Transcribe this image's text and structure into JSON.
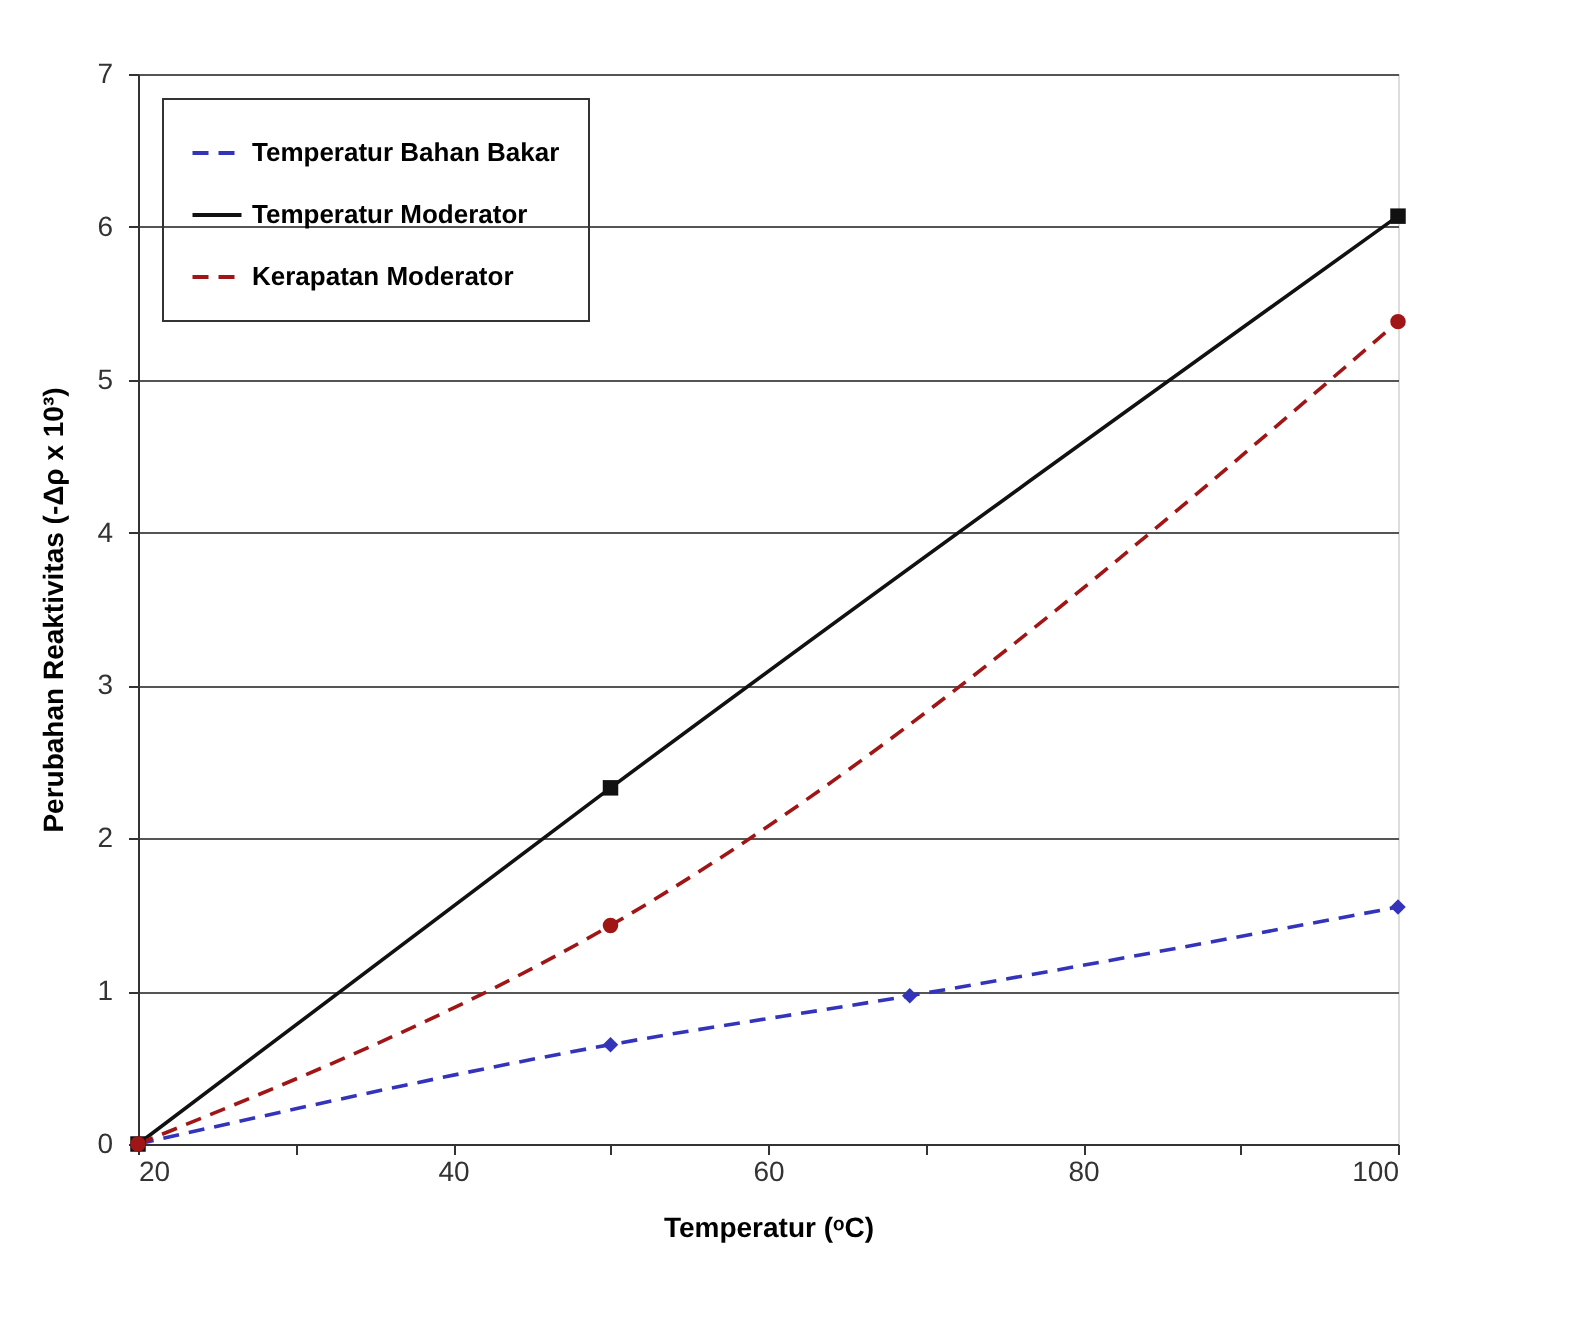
{
  "chart_data": {
    "type": "line",
    "xlabel": "Temperatur (ᵒC)",
    "ylabel": "Perubahan Reaktivitas (-Δρ x 10³)",
    "xlim": [
      20,
      100
    ],
    "xticks": [
      20,
      {
        "value": 30,
        "label": null
      },
      40,
      {
        "value": 50,
        "label": null
      },
      60,
      {
        "value": 70,
        "label": null
      },
      80,
      {
        "value": 90,
        "label": null
      },
      100
    ],
    "ylim": [
      0,
      7
    ],
    "yticks": [
      0,
      1,
      2,
      3,
      4,
      5,
      6,
      7
    ],
    "grid": "y",
    "legend": "top left",
    "series": [
      {
        "name": "Temperatur Bahan Bakar",
        "color": "#3333bb",
        "line_style": "dashed",
        "marker": "diamond",
        "x": [
          20,
          50,
          69,
          100
        ],
        "values": [
          0,
          0.65,
          0.97,
          1.55
        ]
      },
      {
        "name": "Temperatur Moderator",
        "color": "#111111",
        "line_style": "solid",
        "marker": "square",
        "x": [
          20,
          50,
          100
        ],
        "values": [
          0,
          2.33,
          6.07
        ]
      },
      {
        "name": "Kerapatan Moderator",
        "color": "#a01515",
        "line_style": "dashed",
        "marker": "circle",
        "x": [
          20,
          50,
          100
        ],
        "values": [
          0,
          1.43,
          5.38
        ]
      }
    ]
  }
}
